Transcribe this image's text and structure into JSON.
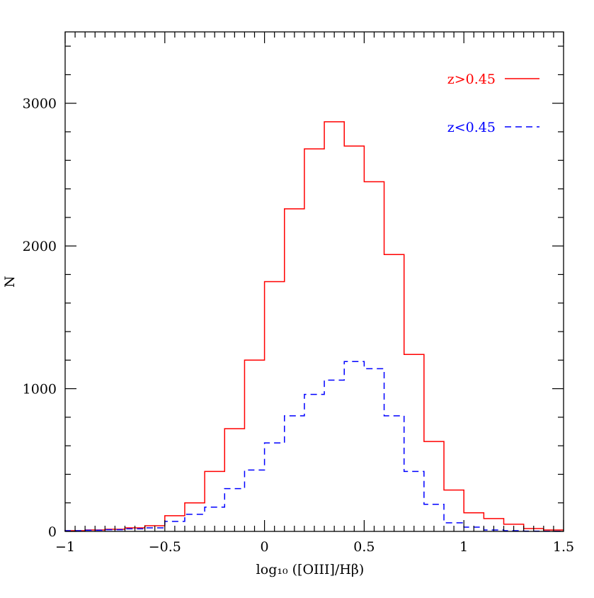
{
  "chart_data": {
    "type": "histogram",
    "title": "",
    "xlabel": "log₁₀ ([OIII]/Hβ)",
    "ylabel": "N",
    "xlim": [
      -1,
      1.5
    ],
    "ylim": [
      0,
      3500
    ],
    "x_ticks": [
      -1,
      -0.5,
      0,
      0.5,
      1,
      1.5
    ],
    "x_tick_labels": [
      "−1",
      "−0.5",
      "0",
      "0.5",
      "1",
      "1.5"
    ],
    "y_ticks": [
      0,
      1000,
      2000,
      3000
    ],
    "y_tick_labels": [
      "0",
      "1000",
      "2000",
      "3000"
    ],
    "bin_edges": [
      -1.0,
      -0.9,
      -0.8,
      -0.7,
      -0.6,
      -0.5,
      -0.4,
      -0.3,
      -0.2,
      -0.1,
      0.0,
      0.1,
      0.2,
      0.3,
      0.4,
      0.5,
      0.6,
      0.7,
      0.8,
      0.9,
      1.0,
      1.1,
      1.2,
      1.3,
      1.4,
      1.5
    ],
    "grid": false,
    "legend_position": "top-right",
    "series": [
      {
        "name": "z>0.45",
        "color": "#ff0000",
        "line_style": "solid",
        "values": [
          5,
          10,
          15,
          25,
          40,
          110,
          200,
          420,
          720,
          1200,
          1750,
          2260,
          2680,
          2870,
          2700,
          2450,
          1940,
          1240,
          630,
          290,
          130,
          90,
          50,
          20,
          10
        ]
      },
      {
        "name": "z<0.45",
        "color": "#0000ff",
        "line_style": "dashed",
        "values": [
          5,
          8,
          12,
          18,
          25,
          70,
          120,
          170,
          300,
          430,
          620,
          810,
          960,
          1060,
          1190,
          1140,
          810,
          420,
          190,
          60,
          30,
          10,
          5,
          2,
          1
        ]
      }
    ]
  }
}
